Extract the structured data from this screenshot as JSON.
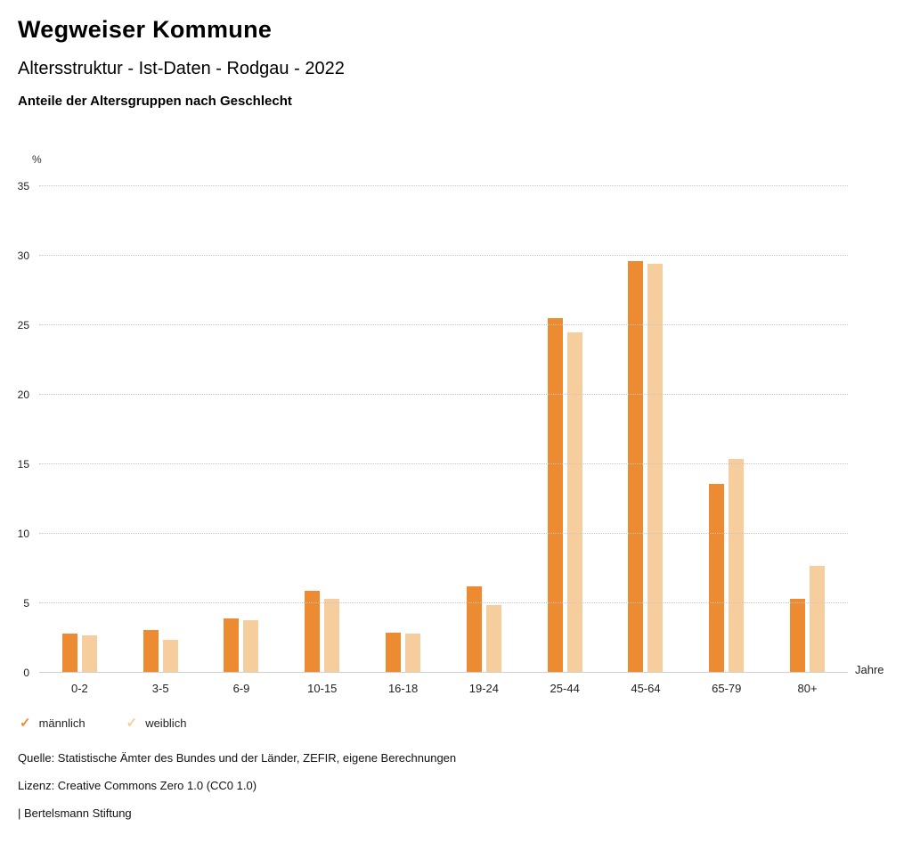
{
  "header": {
    "title": "Wegweiser Kommune",
    "subtitle": "Altersstruktur - Ist-Daten - Rodgau - 2022",
    "section_title": "Anteile der Altersgruppen nach Geschlecht"
  },
  "chart_data": {
    "type": "bar",
    "title": "Anteile der Altersgruppen nach Geschlecht",
    "categories": [
      "0-2",
      "3-5",
      "6-9",
      "10-15",
      "16-18",
      "19-24",
      "25-44",
      "45-64",
      "65-79",
      "80+"
    ],
    "series": [
      {
        "name": "männlich",
        "color": "#EC8B31",
        "values": [
          2.8,
          3.1,
          3.9,
          5.9,
          2.9,
          6.2,
          25.5,
          29.6,
          13.6,
          5.3
        ]
      },
      {
        "name": "weiblich",
        "color": "#F6CD9C",
        "values": [
          2.7,
          2.4,
          3.8,
          5.3,
          2.8,
          4.9,
          24.5,
          29.4,
          15.4,
          7.7
        ]
      }
    ],
    "ylabel": "%",
    "xlabel": "Jahre",
    "ylim": [
      0,
      35
    ],
    "yticks": [
      0,
      5,
      10,
      15,
      20,
      25,
      30,
      35
    ],
    "grid": true,
    "legend_position": "bottom"
  },
  "legend": {
    "items": [
      {
        "label": "männlich",
        "color": "#EC8B31"
      },
      {
        "label": "weiblich",
        "color": "#F6CD9C"
      }
    ]
  },
  "footer": {
    "source": "Quelle: Statistische Ämter des Bundes und der Länder, ZEFIR, eigene Berechnungen",
    "license": "Lizenz: Creative Commons Zero 1.0 (CC0 1.0)",
    "attribution": "| Bertelsmann Stiftung"
  }
}
